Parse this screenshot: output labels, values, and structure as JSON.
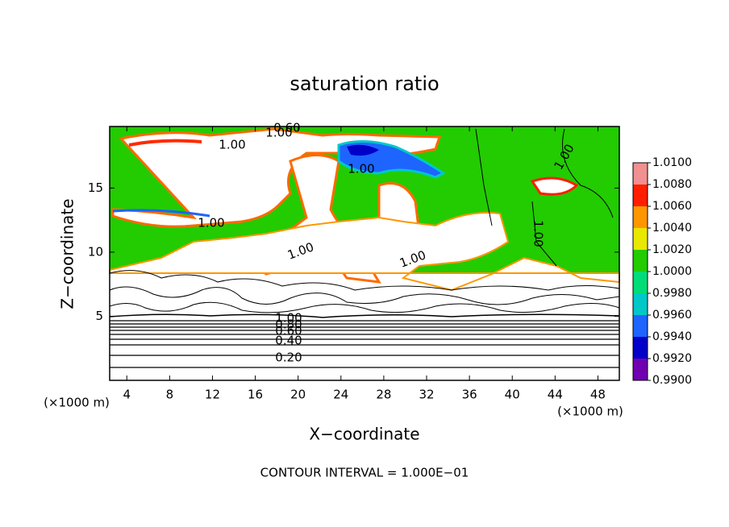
{
  "chart_data": {
    "type": "contour",
    "title": "saturation ratio",
    "xlabel": "X−coordinate",
    "ylabel": "Z−coordinate",
    "x_unit": "(×1000 m)",
    "y_unit": "(×1000 m)",
    "footnote": "CONTOUR INTERVAL = 1.000E−01",
    "xlim": [
      2.4,
      50
    ],
    "ylim": [
      0,
      19.8
    ],
    "xticks": [
      4,
      8,
      12,
      16,
      20,
      24,
      28,
      32,
      36,
      40,
      44,
      48
    ],
    "yticks": [
      5,
      10,
      15
    ],
    "contour_labels": [
      "0.20",
      "0.40",
      "0.60",
      "0.80",
      "1.00",
      "1.00",
      "1.00",
      "0.60",
      "1.00",
      "1.00",
      "1.00",
      "1.00",
      "1.00",
      "1.00"
    ],
    "colorbar": {
      "ticks": [
        {
          "value": 0.99,
          "label": "0.9900"
        },
        {
          "value": 0.992,
          "label": "0.9920"
        },
        {
          "value": 0.994,
          "label": "0.9940"
        },
        {
          "value": 0.996,
          "label": "0.9960"
        },
        {
          "value": 0.998,
          "label": "0.9980"
        },
        {
          "value": 1.0,
          "label": "1.0000"
        },
        {
          "value": 1.002,
          "label": "1.0020"
        },
        {
          "value": 1.004,
          "label": "1.0040"
        },
        {
          "value": 1.006,
          "label": "1.0060"
        },
        {
          "value": 1.008,
          "label": "1.0080"
        },
        {
          "value": 1.01,
          "label": "1.0100"
        }
      ],
      "colors": [
        "#7000b0",
        "#0000c8",
        "#1e64ff",
        "#00c8c8",
        "#00dc78",
        "#22cc00",
        "#e8e800",
        "#ff9600",
        "#ff1e00",
        "#f09090"
      ]
    }
  }
}
